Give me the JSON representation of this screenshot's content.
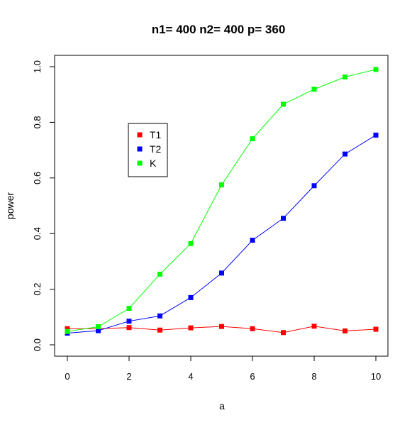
{
  "chart_data": {
    "type": "line",
    "title": "n1= 400 n2= 400 p= 360",
    "xlabel": "a",
    "ylabel": "power",
    "x": [
      0,
      1,
      2,
      3,
      4,
      5,
      6,
      7,
      8,
      9,
      10
    ],
    "xlim": [
      0,
      10
    ],
    "ylim": [
      0,
      1
    ],
    "x_ticks": [
      "0",
      "2",
      "4",
      "6",
      "8",
      "10"
    ],
    "y_ticks": [
      "0.0",
      "0.2",
      "0.4",
      "0.6",
      "0.8",
      "1.0"
    ],
    "grid": false,
    "legend_position": "upper-left",
    "series": [
      {
        "name": "T1",
        "color": "#ff0000",
        "values": [
          0.058,
          0.058,
          0.062,
          0.053,
          0.061,
          0.066,
          0.058,
          0.044,
          0.067,
          0.05,
          0.056
        ]
      },
      {
        "name": "T2",
        "color": "#0000ff",
        "values": [
          0.042,
          0.051,
          0.085,
          0.104,
          0.17,
          0.258,
          0.376,
          0.455,
          0.572,
          0.686,
          0.754
        ]
      },
      {
        "name": "K",
        "color": "#00ff00",
        "values": [
          0.048,
          0.065,
          0.131,
          0.254,
          0.364,
          0.575,
          0.741,
          0.865,
          0.919,
          0.963,
          0.99
        ]
      }
    ]
  }
}
